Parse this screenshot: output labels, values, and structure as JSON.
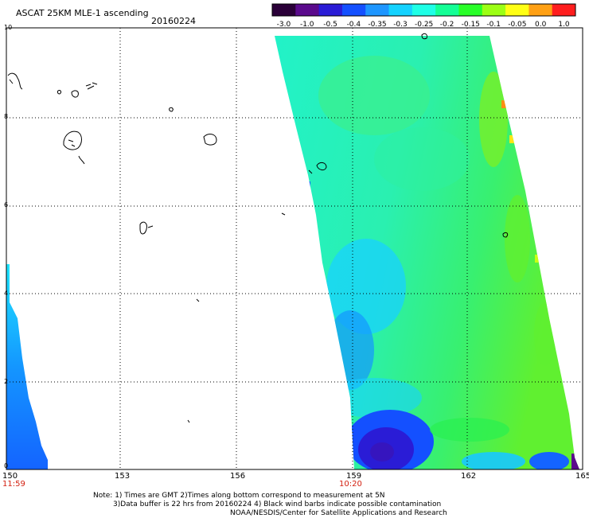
{
  "header": {
    "title": "ASCAT 25KM MLE-1 ascending",
    "date": "20160224"
  },
  "colorbar": {
    "labels": [
      "-3.0",
      "-1.0",
      "-0.5",
      "-0.4",
      "-0.35",
      "-0.3",
      "-0.25",
      "-0.2",
      "-0.15",
      "-0.1",
      "-0.05",
      "0.0",
      "1.0"
    ],
    "colors": [
      "#2a0038",
      "#5a0a8c",
      "#2a1cd6",
      "#1450ff",
      "#1e96ff",
      "#14d2ff",
      "#1effe6",
      "#14ff96",
      "#28ff28",
      "#9cff14",
      "#ffff14",
      "#ffa014",
      "#ff1e1e"
    ]
  },
  "axes": {
    "x_ticks": [
      "150",
      "153",
      "156",
      "159",
      "162",
      "165"
    ],
    "y_ticks": [
      "0",
      "2",
      "4",
      "6",
      "8",
      "10"
    ],
    "times": [
      "11:59",
      "10:20"
    ]
  },
  "notes": [
    "Note: 1) Times are GMT 2)Times along bottom correspond to measurement at 5N",
    "3)Data buffer is 22 hrs from 20160224 4) Black wind barbs indicate possible contamination",
    "NOAA/NESDIS/Center for Satellite Applications and Research"
  ]
}
